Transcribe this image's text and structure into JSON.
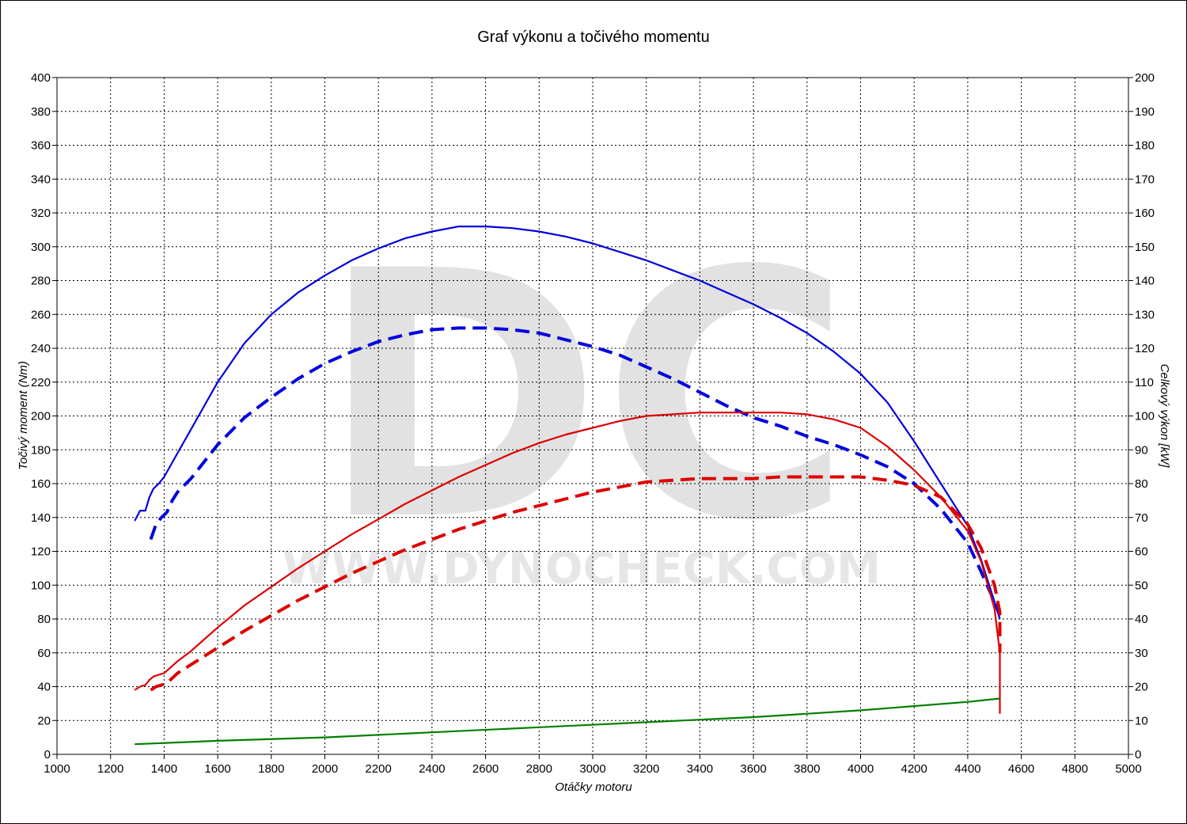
{
  "watermark": {
    "letters": "DC",
    "url": "WWW.DYNOCHECK.COM"
  },
  "chart_data": {
    "type": "line",
    "title": "Graf výkonu a točivého momentu",
    "xlabel": "Otáčky motoru",
    "ylabel_left": "Točivý moment (Nm)",
    "ylabel_right": "Celkový výkon [kW]",
    "xlim": [
      1000,
      5000
    ],
    "ylim_left": [
      0,
      400
    ],
    "ylim_right": [
      0,
      200
    ],
    "x_ticks": [
      1000,
      1200,
      1400,
      1600,
      1800,
      2000,
      2200,
      2400,
      2600,
      2800,
      3000,
      3200,
      3400,
      3600,
      3800,
      4000,
      4200,
      4400,
      4600,
      4800,
      5000
    ],
    "y_ticks_left": [
      0,
      20,
      40,
      60,
      80,
      100,
      120,
      140,
      160,
      180,
      200,
      220,
      240,
      260,
      280,
      300,
      320,
      340,
      360,
      380,
      400
    ],
    "y_ticks_right": [
      0,
      10,
      20,
      30,
      40,
      50,
      60,
      70,
      80,
      90,
      100,
      110,
      120,
      130,
      140,
      150,
      160,
      170,
      180,
      190,
      200
    ],
    "grid": true,
    "series": [
      {
        "id": "torque-tuned",
        "axis": "left",
        "color": "#0000dd",
        "style": "solid",
        "x": [
          1290,
          1310,
          1330,
          1345,
          1360,
          1380,
          1400,
          1450,
          1500,
          1600,
          1700,
          1800,
          1900,
          2000,
          2100,
          2200,
          2300,
          2400,
          2500,
          2600,
          2700,
          2800,
          2900,
          3000,
          3100,
          3200,
          3300,
          3400,
          3500,
          3600,
          3700,
          3800,
          3900,
          4000,
          4100,
          4200,
          4300,
          4400,
          4450,
          4500,
          4520
        ],
        "y": [
          138,
          144,
          144,
          152,
          157,
          160,
          164,
          178,
          192,
          220,
          243,
          260,
          273,
          283,
          292,
          299,
          305,
          309,
          312,
          312,
          311,
          309,
          306,
          302,
          297,
          292,
          286,
          280,
          273,
          266,
          258,
          249,
          238,
          225,
          208,
          185,
          160,
          135,
          115,
          90,
          80
        ]
      },
      {
        "id": "torque-stock",
        "axis": "left",
        "color": "#0000dd",
        "style": "dashed",
        "x": [
          1350,
          1370,
          1390,
          1410,
          1430,
          1450,
          1500,
          1600,
          1700,
          1800,
          1900,
          2000,
          2100,
          2200,
          2300,
          2400,
          2500,
          2600,
          2700,
          2800,
          2900,
          3000,
          3100,
          3200,
          3300,
          3400,
          3500,
          3600,
          3700,
          3800,
          3900,
          4000,
          4100,
          4200,
          4300,
          4400,
          4450,
          4500,
          4520
        ],
        "y": [
          127,
          136,
          140,
          143,
          150,
          155,
          163,
          183,
          199,
          211,
          222,
          231,
          238,
          244,
          248,
          251,
          252,
          252,
          251,
          249,
          245,
          241,
          236,
          229,
          222,
          214,
          206,
          199,
          194,
          188,
          183,
          177,
          170,
          160,
          145,
          125,
          108,
          90,
          82
        ]
      },
      {
        "id": "power-tuned",
        "axis": "right",
        "color": "#dd0000",
        "style": "solid",
        "x": [
          1290,
          1310,
          1330,
          1345,
          1360,
          1380,
          1400,
          1450,
          1500,
          1600,
          1700,
          1800,
          1900,
          2000,
          2100,
          2200,
          2300,
          2400,
          2500,
          2600,
          2700,
          2800,
          2900,
          3000,
          3100,
          3200,
          3300,
          3400,
          3500,
          3600,
          3700,
          3800,
          3900,
          4000,
          4100,
          4200,
          4300,
          4400,
          4450,
          4500,
          4520,
          4520
        ],
        "y": [
          19,
          20,
          20.5,
          22,
          23,
          23.5,
          24,
          27.5,
          30.5,
          37.5,
          44,
          49.5,
          55,
          60,
          65,
          69.5,
          74,
          78,
          82,
          85.5,
          89,
          92,
          94.5,
          96.5,
          98.5,
          100,
          100.5,
          101,
          101,
          101,
          101,
          100.5,
          99,
          96.5,
          91,
          84,
          76,
          66,
          57,
          43,
          30,
          12
        ]
      },
      {
        "id": "power-stock",
        "axis": "right",
        "color": "#dd0000",
        "style": "dashed",
        "x": [
          1350,
          1370,
          1390,
          1410,
          1430,
          1450,
          1500,
          1600,
          1700,
          1800,
          1900,
          2000,
          2100,
          2200,
          2300,
          2400,
          2500,
          2600,
          2700,
          2800,
          2900,
          3000,
          3100,
          3200,
          3300,
          3400,
          3500,
          3600,
          3700,
          3800,
          3900,
          4000,
          4100,
          4200,
          4300,
          4400,
          4450,
          4500,
          4520,
          4520
        ],
        "y": [
          19,
          20,
          20.5,
          21,
          22.5,
          24,
          26.5,
          31.5,
          36.5,
          41,
          45.5,
          49.5,
          53.5,
          57,
          60.5,
          63.5,
          66.5,
          69,
          71.5,
          73.5,
          75.5,
          77.5,
          79,
          80.5,
          81,
          81.5,
          81.5,
          81.5,
          82,
          82,
          82,
          82,
          81,
          79.5,
          76,
          68,
          61,
          50,
          42,
          30
        ]
      },
      {
        "id": "drag-loss",
        "axis": "right",
        "color": "#008000",
        "style": "solid",
        "x": [
          1290,
          1600,
          2000,
          2400,
          2800,
          3200,
          3600,
          4000,
          4400,
          4520
        ],
        "y": [
          3,
          4,
          5,
          6.5,
          8,
          9.5,
          11,
          13,
          15.5,
          16.5
        ]
      }
    ]
  }
}
